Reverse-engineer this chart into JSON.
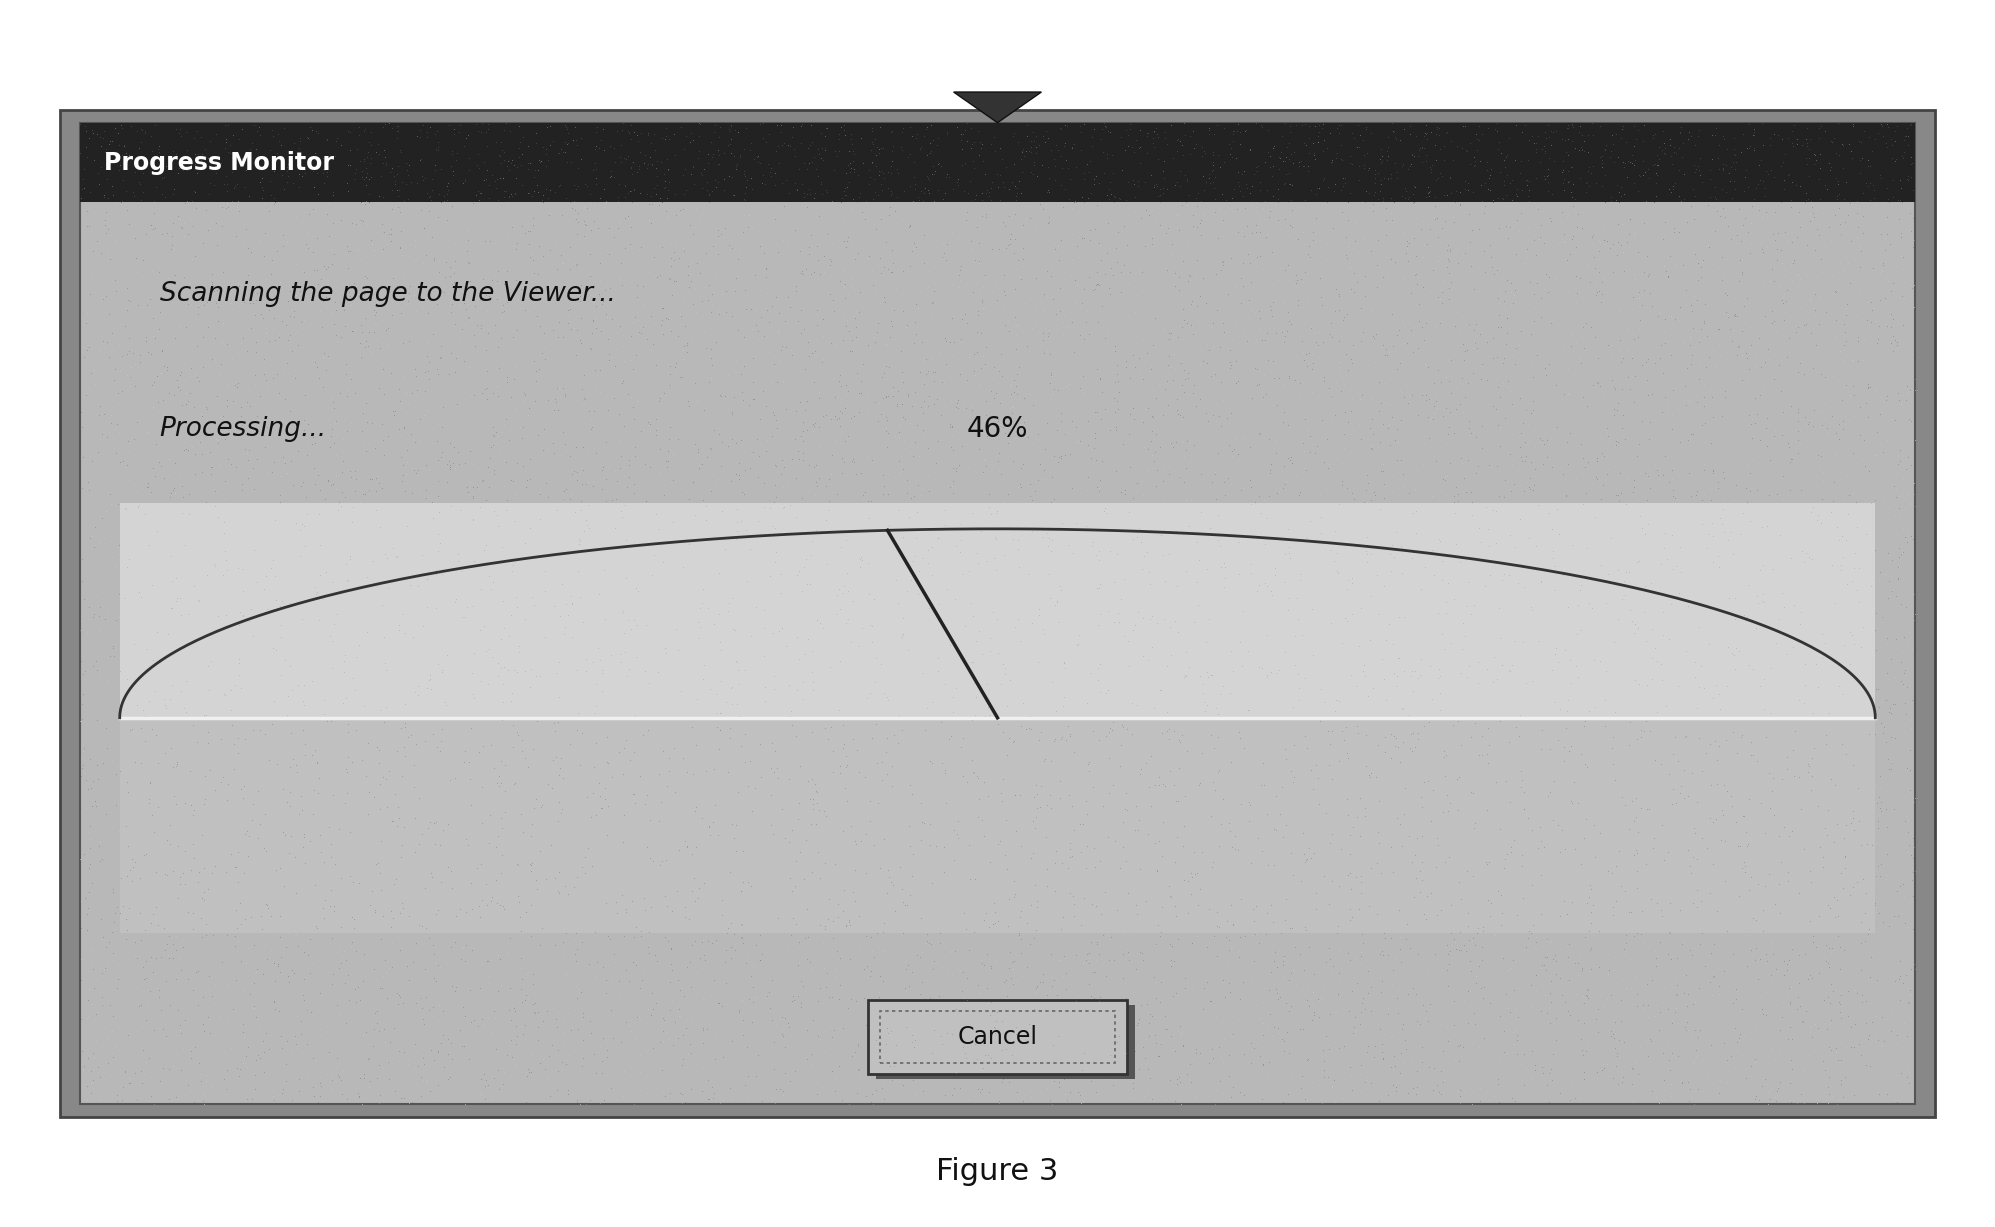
{
  "figure_bg": "#ffffff",
  "caption": "Figure 3",
  "caption_fontsize": 22,
  "titlebar_text": "Progress Monitor",
  "titlebar_text_color": "#ffffff",
  "titlebar_fontsize": 17,
  "titlebar_bg": "#222222",
  "outer_bg": "#aaaaaa",
  "dialog_bg": "#b8b8b8",
  "text1": "Scanning the page to the Viewer...",
  "text1_fontsize": 19,
  "text2": "Processing...",
  "text2_fontsize": 19,
  "percent_text": "46%",
  "percent_fontsize": 20,
  "progress_upper_bg": "#d0d0d0",
  "progress_lower_bg": "#b0b0b0",
  "arch_color": "#333333",
  "needle_color": "#222222",
  "white_line_color": "#e8e8e8",
  "cancel_text": "Cancel",
  "cancel_fontsize": 17
}
